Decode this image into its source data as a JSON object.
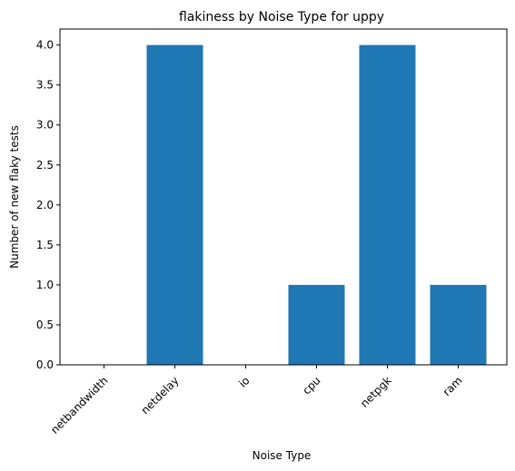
{
  "chart_data": {
    "type": "bar",
    "title": "flakiness by Noise Type for uppy",
    "xlabel": "Noise Type",
    "ylabel": "Number of new flaky tests",
    "categories": [
      "netbandwidth",
      "netdelay",
      "io",
      "cpu",
      "netpgk",
      "ram"
    ],
    "values": [
      0,
      4,
      0,
      1,
      4,
      1
    ],
    "ylim": [
      0,
      4.2
    ],
    "yticks": [
      "0.0",
      "0.5",
      "1.0",
      "1.5",
      "2.0",
      "2.5",
      "3.0",
      "3.5",
      "4.0"
    ],
    "grid": false,
    "legend": "none",
    "bar_color": "#1f77b4"
  }
}
